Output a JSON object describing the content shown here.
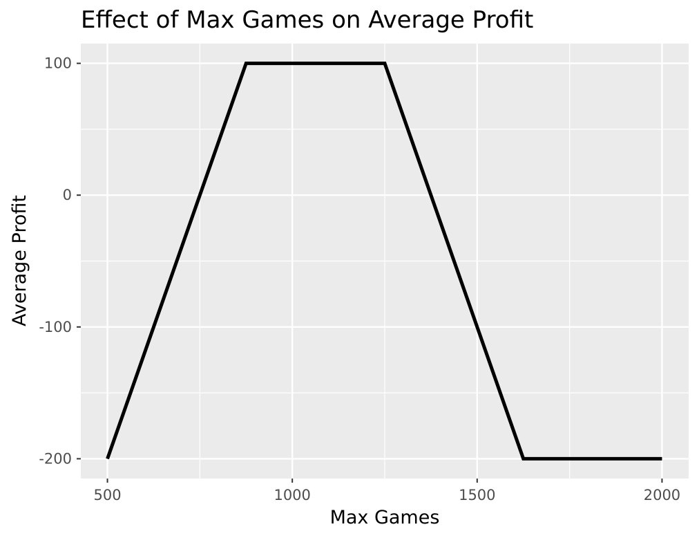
{
  "chart_data": {
    "type": "line",
    "title": "Effect of Max Games on Average Profit",
    "xlabel": "Max Games",
    "ylabel": "Average Profit",
    "xlim": [
      428,
      2072
    ],
    "ylim": [
      -215,
      115
    ],
    "x_ticks": [
      500,
      1000,
      1500,
      2000
    ],
    "x_tick_labels": [
      "500",
      "1000",
      "1500",
      "2000"
    ],
    "y_ticks": [
      -200,
      -100,
      0,
      100
    ],
    "y_tick_labels": [
      "-200",
      "-100",
      "0",
      "100"
    ],
    "x_minor_ticks": [
      750,
      1250,
      1750
    ],
    "y_minor_ticks": [
      -150,
      -50,
      50
    ],
    "grid": true,
    "series": [
      {
        "x": [
          500,
          875,
          1250,
          1625,
          2000
        ],
        "y": [
          -200,
          100,
          100,
          -200,
          -200
        ],
        "color": "#000000"
      }
    ],
    "panel_background": "#ebebeb",
    "grid_color": "#ffffff"
  }
}
